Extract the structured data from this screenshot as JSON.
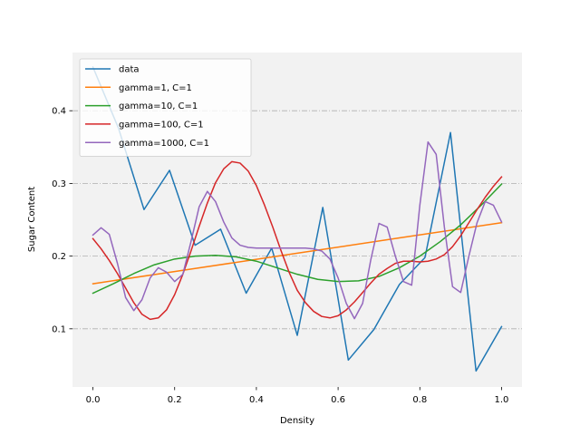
{
  "chart_data": {
    "type": "line",
    "title": "",
    "xlabel": "Density",
    "ylabel": "Sugar Content",
    "xlim": [
      -0.05,
      1.05
    ],
    "ylim": [
      0.02,
      0.48
    ],
    "xticks": [
      "0.0",
      "0.2",
      "0.4",
      "0.6",
      "0.8",
      "1.0"
    ],
    "xtick_values": [
      0.0,
      0.2,
      0.4,
      0.6,
      0.8,
      1.0
    ],
    "yticks": [
      "0.1",
      "0.2",
      "0.3",
      "0.4"
    ],
    "ytick_values": [
      0.1,
      0.2,
      0.3,
      0.4
    ],
    "grid": "horizontal dash-dot",
    "legend": "top-left",
    "background": "#f2f2f2",
    "series": [
      {
        "name": "data",
        "color": "#1f77b4",
        "x": [
          0.0,
          0.0625,
          0.125,
          0.1875,
          0.25,
          0.3125,
          0.375,
          0.4375,
          0.5,
          0.5625,
          0.625,
          0.6875,
          0.75,
          0.8125,
          0.875,
          0.9375,
          1.0
        ],
        "y": [
          0.46,
          0.376,
          0.264,
          0.318,
          0.215,
          0.237,
          0.149,
          0.211,
          0.091,
          0.267,
          0.057,
          0.099,
          0.161,
          0.198,
          0.37,
          0.042,
          0.103
        ]
      },
      {
        "name": "gamma=1, C=1",
        "color": "#ff7f0e",
        "x": [
          0.0,
          0.25,
          0.5,
          0.75,
          1.0
        ],
        "y": [
          0.162,
          0.183,
          0.204,
          0.225,
          0.246
        ]
      },
      {
        "name": "gamma=10, C=1",
        "color": "#2ca02c",
        "x": [
          0.0,
          0.05,
          0.1,
          0.15,
          0.2,
          0.25,
          0.3,
          0.35,
          0.4,
          0.45,
          0.5,
          0.55,
          0.6,
          0.65,
          0.7,
          0.75,
          0.8,
          0.85,
          0.9,
          0.95,
          1.0
        ],
        "y": [
          0.149,
          0.162,
          0.176,
          0.188,
          0.196,
          0.2,
          0.201,
          0.199,
          0.193,
          0.184,
          0.175,
          0.168,
          0.165,
          0.166,
          0.172,
          0.184,
          0.2,
          0.22,
          0.243,
          0.27,
          0.299
        ]
      },
      {
        "name": "gamma=100, C=1",
        "color": "#d62728",
        "x": [
          0.0,
          0.02,
          0.04,
          0.06,
          0.08,
          0.1,
          0.12,
          0.14,
          0.16,
          0.18,
          0.2,
          0.22,
          0.24,
          0.26,
          0.28,
          0.3,
          0.32,
          0.34,
          0.36,
          0.38,
          0.4,
          0.42,
          0.44,
          0.46,
          0.48,
          0.5,
          0.52,
          0.54,
          0.56,
          0.58,
          0.6,
          0.62,
          0.64,
          0.66,
          0.68,
          0.7,
          0.72,
          0.74,
          0.76,
          0.78,
          0.8,
          0.82,
          0.84,
          0.86,
          0.88,
          0.9,
          0.92,
          0.94,
          0.96,
          0.98,
          1.0
        ],
        "y": [
          0.224,
          0.21,
          0.194,
          0.176,
          0.156,
          0.136,
          0.12,
          0.113,
          0.115,
          0.126,
          0.147,
          0.175,
          0.207,
          0.241,
          0.273,
          0.301,
          0.32,
          0.33,
          0.328,
          0.317,
          0.297,
          0.27,
          0.24,
          0.208,
          0.178,
          0.153,
          0.136,
          0.124,
          0.117,
          0.115,
          0.118,
          0.126,
          0.137,
          0.15,
          0.163,
          0.175,
          0.183,
          0.19,
          0.193,
          0.193,
          0.192,
          0.193,
          0.196,
          0.202,
          0.213,
          0.228,
          0.246,
          0.264,
          0.281,
          0.296,
          0.309
        ]
      },
      {
        "name": "gamma=1000, C=1",
        "color": "#9467bd",
        "x": [
          0.0,
          0.02,
          0.04,
          0.06,
          0.08,
          0.1,
          0.12,
          0.14,
          0.16,
          0.18,
          0.2,
          0.22,
          0.24,
          0.26,
          0.28,
          0.3,
          0.32,
          0.34,
          0.36,
          0.38,
          0.4,
          0.42,
          0.44,
          0.46,
          0.48,
          0.5,
          0.52,
          0.54,
          0.56,
          0.58,
          0.6,
          0.62,
          0.64,
          0.66,
          0.68,
          0.7,
          0.72,
          0.74,
          0.76,
          0.78,
          0.8,
          0.82,
          0.84,
          0.86,
          0.88,
          0.9,
          0.92,
          0.94,
          0.96,
          0.98,
          1.0
        ],
        "y": [
          0.229,
          0.239,
          0.23,
          0.19,
          0.143,
          0.125,
          0.14,
          0.17,
          0.184,
          0.178,
          0.165,
          0.175,
          0.22,
          0.268,
          0.289,
          0.275,
          0.247,
          0.225,
          0.215,
          0.212,
          0.211,
          0.211,
          0.211,
          0.211,
          0.211,
          0.211,
          0.211,
          0.21,
          0.207,
          0.196,
          0.17,
          0.135,
          0.114,
          0.135,
          0.195,
          0.245,
          0.24,
          0.2,
          0.165,
          0.16,
          0.27,
          0.357,
          0.34,
          0.24,
          0.158,
          0.15,
          0.2,
          0.246,
          0.275,
          0.27,
          0.247
        ]
      }
    ]
  }
}
